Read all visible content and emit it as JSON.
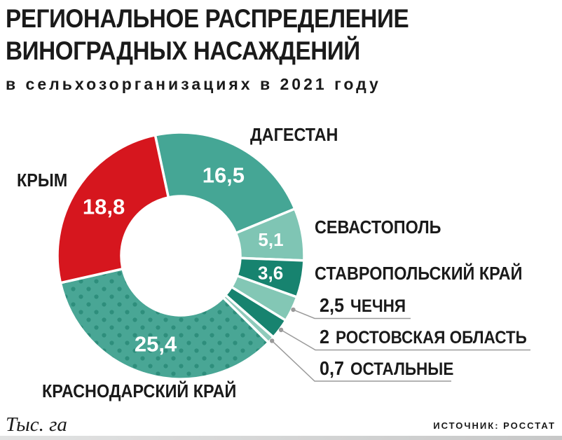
{
  "header": {
    "title_line1": "РЕГИОНАЛЬНОЕ РАСПРЕДЕЛЕНИЕ",
    "title_line2": "ВИНОГРАДНЫХ НАСАЖДЕНИЙ",
    "subtitle": "в сельхозорганизациях в 2021 году"
  },
  "footer": {
    "unit_label": "Тыс. га",
    "source": "ИСТОЧНИК: РОССТАТ"
  },
  "colors": {
    "teal": "#49a695",
    "teal_light": "#7fc5b4",
    "teal_dark": "#17836f",
    "red": "#d6161e",
    "leader_line": "#9a9a9a",
    "value_text": "#ffffff"
  },
  "chart_data": {
    "type": "pie",
    "subtype": "donut",
    "title": "РЕГИОНАЛЬНОЕ РАСПРЕДЕЛЕНИЕ ВИНОГРАДНЫХ НАСАЖДЕНИЙ в сельхозорганизациях в 2021 году",
    "unit": "Тыс. га",
    "source": "ИСТОЧНИК: РОССТАТ",
    "start_angle_deg": -12,
    "legend_position": "outside-labels",
    "segments": [
      {
        "name": "ДАГЕСТАН",
        "value": 16.5,
        "value_label": "16,5",
        "color": "#45a695",
        "label_placement": "inside"
      },
      {
        "name": "СЕВАСТОПОЛЬ",
        "value": 5.1,
        "value_label": "5,1",
        "color": "#7fc5b4",
        "label_placement": "inside"
      },
      {
        "name": "СТАВРОПОЛЬСКИЙ КРАЙ",
        "value": 3.6,
        "value_label": "3,6",
        "color": "#17836f",
        "label_placement": "inside"
      },
      {
        "name": "ЧЕЧНЯ",
        "value": 2.5,
        "value_label": "2,5",
        "color": "#83c7b5",
        "label_placement": "outside"
      },
      {
        "name": "РОСТОВСКАЯ ОБЛАСТЬ",
        "value": 2,
        "value_label": "2",
        "color": "#17836f",
        "label_placement": "outside"
      },
      {
        "name": "ОСТАЛЬНЫЕ",
        "value": 0.7,
        "value_label": "0,7",
        "color": "#8fcbbb",
        "label_placement": "outside"
      },
      {
        "name": "КРАСНОДАРСКИЙ КРАЙ",
        "value": 25.4,
        "value_label": "25,4",
        "color": "#49a695",
        "pattern": "dots",
        "dot_color": "#2e8e7c",
        "label_placement": "inside"
      },
      {
        "name": "КРЫМ",
        "value": 18.8,
        "value_label": "18,8",
        "color": "#d6161e",
        "label_placement": "inside"
      }
    ]
  }
}
